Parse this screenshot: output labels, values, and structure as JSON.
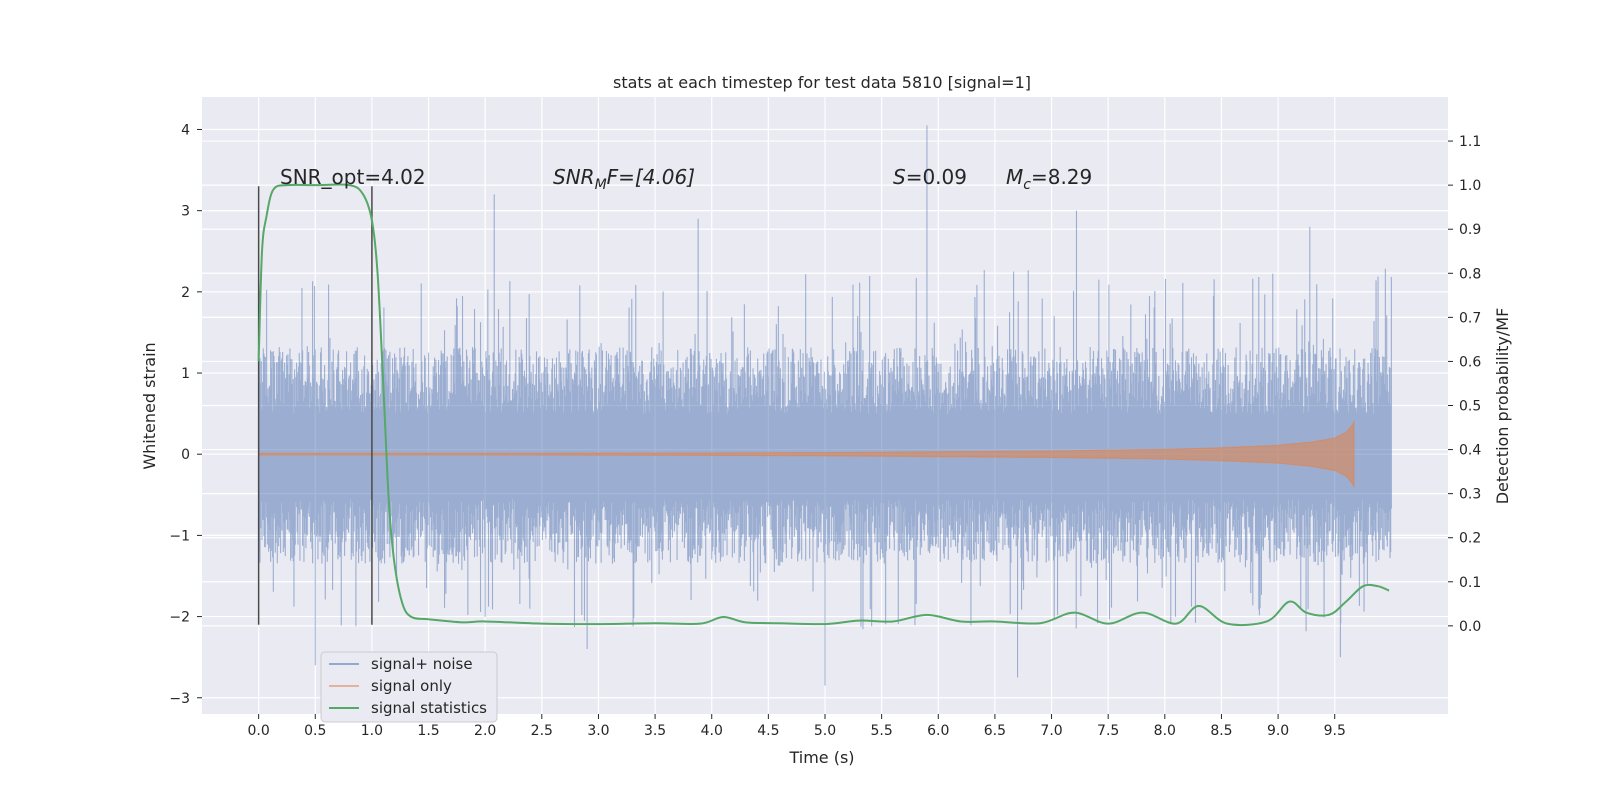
{
  "chart_data": {
    "type": "line",
    "title": "stats at each timestep for test data 5810 [signal=1]",
    "xlabel": "Time (s)",
    "ylabel": "Whitened strain",
    "y2label": "Detection probability/MF",
    "xlim": [
      -0.5,
      10.5
    ],
    "ylim": [
      -3.2,
      4.4
    ],
    "y2lim": [
      -0.2,
      1.2
    ],
    "x_ticks": [
      0.0,
      0.5,
      1.0,
      1.5,
      2.0,
      2.5,
      3.0,
      3.5,
      4.0,
      4.5,
      5.0,
      5.5,
      6.0,
      6.5,
      7.0,
      7.5,
      8.0,
      8.5,
      9.0,
      9.5
    ],
    "x_tick_labels": [
      "0.0",
      "0.5",
      "1.0",
      "1.5",
      "2.0",
      "2.5",
      "3.0",
      "3.5",
      "4.0",
      "4.5",
      "5.0",
      "5.5",
      "6.0",
      "6.5",
      "7.0",
      "7.5",
      "8.0",
      "8.5",
      "9.0",
      "9.5"
    ],
    "y_ticks": [
      4,
      3,
      2,
      1,
      0,
      -1,
      -2,
      -3
    ],
    "y_tick_labels": [
      "4",
      "3",
      "2",
      "1",
      "0",
      "−1",
      "−2",
      "−3"
    ],
    "y2_ticks": [
      1.1,
      1.0,
      0.9,
      0.8,
      0.7,
      0.6,
      0.5,
      0.4,
      0.3,
      0.2,
      0.1,
      0.0
    ],
    "y2_tick_labels": [
      "1.1",
      "1.0",
      "0.9",
      "0.8",
      "0.7",
      "0.6",
      "0.5",
      "0.4",
      "0.3",
      "0.2",
      "0.1",
      "0.0"
    ],
    "grid": true,
    "legend_position": "bottom-left",
    "annotations": {
      "snr_opt": "SNR_opt=4.02",
      "snr_mf_main": "SNR",
      "snr_mf_sub": "M",
      "snr_mf_rest": "F=[4.06]",
      "s_main": "S",
      "s_rest": "=0.09",
      "mc_main": "M",
      "mc_sub": "c",
      "mc_rest": "=8.29"
    },
    "vertical_lines": [
      {
        "x": 0.0,
        "ymin": -2.1,
        "ymax": 3.3
      },
      {
        "x": 1.0,
        "ymin": -2.1,
        "ymax": 3.3
      }
    ],
    "series": [
      {
        "name": "signal+ noise",
        "color": "#4c72b0",
        "noise_band": {
          "x_start": 0.0,
          "x_end": 10.0,
          "core_min": -1.0,
          "core_max": 1.1,
          "peak_max": 4.05,
          "peak_min": -2.85
        }
      },
      {
        "name": "signal only",
        "color": "#dd8452",
        "envelope": {
          "x": [
            0.0,
            2.0,
            4.0,
            5.0,
            6.0,
            7.0,
            8.0,
            8.5,
            9.0,
            9.3,
            9.5,
            9.6,
            9.65,
            9.67
          ],
          "amplitude": [
            0.01,
            0.01,
            0.015,
            0.02,
            0.03,
            0.04,
            0.06,
            0.08,
            0.11,
            0.15,
            0.2,
            0.27,
            0.35,
            0.4
          ]
        }
      },
      {
        "name": "signal statistics",
        "color": "#55a868",
        "axis": "right",
        "x": [
          0.0,
          0.03,
          0.07,
          0.13,
          0.25,
          0.5,
          0.8,
          0.92,
          1.0,
          1.05,
          1.1,
          1.15,
          1.2,
          1.27,
          1.35,
          1.5,
          1.8,
          2.0,
          2.5,
          3.0,
          3.5,
          3.9,
          4.1,
          4.3,
          4.6,
          5.0,
          5.3,
          5.6,
          5.9,
          6.2,
          6.5,
          6.9,
          7.2,
          7.5,
          7.8,
          8.1,
          8.3,
          8.55,
          8.9,
          9.1,
          9.25,
          9.45,
          9.6,
          9.75,
          9.88,
          9.98
        ],
        "y": [
          0.6,
          0.85,
          0.93,
          0.99,
          1.0,
          1.0,
          1.0,
          0.98,
          0.92,
          0.8,
          0.55,
          0.28,
          0.14,
          0.05,
          0.02,
          0.015,
          0.008,
          0.01,
          0.005,
          0.004,
          0.006,
          0.005,
          0.02,
          0.008,
          0.006,
          0.004,
          0.012,
          0.01,
          0.025,
          0.01,
          0.01,
          0.006,
          0.03,
          0.005,
          0.03,
          0.005,
          0.045,
          0.005,
          0.01,
          0.055,
          0.03,
          0.025,
          0.055,
          0.09,
          0.09,
          0.08
        ]
      }
    ]
  }
}
